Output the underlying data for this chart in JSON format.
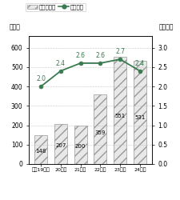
{
  "categories": [
    "平成19年度",
    "20年度",
    "21年度",
    "22年度",
    "23年度",
    "24年度"
  ],
  "bar_values": [
    148,
    207,
    200,
    359,
    551,
    531
  ],
  "line_values": [
    2.0,
    2.4,
    2.6,
    2.6,
    2.7,
    2.4
  ],
  "bar_color": "#e8e8e8",
  "bar_hatch": "///",
  "bar_edgecolor": "#999999",
  "line_color": "#3a7a50",
  "line_marker": "o",
  "line_marker_facecolor": "#3a7a50",
  "line_marker_edgecolor": "#3a7a50",
  "bar_label_values": [
    "148",
    "207",
    "200",
    "359",
    "551",
    "531"
  ],
  "line_label_values": [
    "2.0",
    "2.4",
    "2.6",
    "2.6",
    "2.7",
    "2.4"
  ],
  "left_ylabel": "（件）",
  "right_ylabel": "（億円）",
  "legend_bar": "差押え件数",
  "legend_line": "差押え額",
  "ylim_left": [
    0,
    660
  ],
  "ylim_right": [
    0.0,
    3.3
  ],
  "left_yticks": [
    0,
    100,
    200,
    300,
    400,
    500,
    600
  ],
  "right_yticks": [
    0.0,
    0.5,
    1.0,
    1.5,
    2.0,
    2.5,
    3.0
  ],
  "tick_fontsize": 5.5,
  "label_fontsize": 5.5,
  "bar_label_fontsize": 5.0,
  "line_label_fontsize": 5.5,
  "legend_fontsize": 5.0
}
